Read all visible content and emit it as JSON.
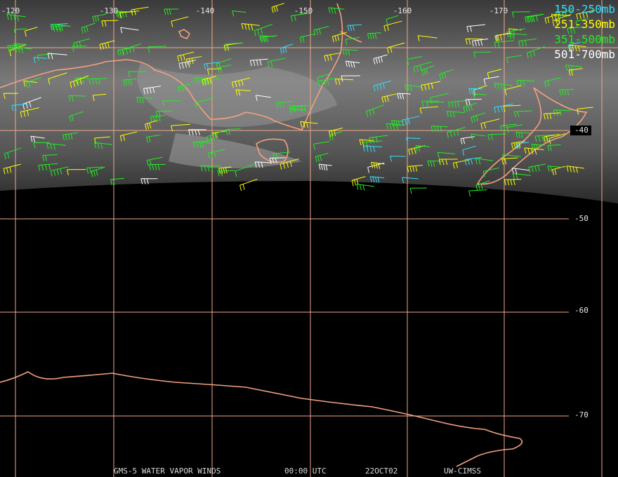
{
  "longitude_labels": [
    "-120",
    "-130",
    "-140",
    "-150",
    "-160",
    "-170"
  ],
  "latitude_labels": [
    "-40",
    "-50",
    "-60",
    "-70"
  ],
  "legend": [
    {
      "label": "150-250mb",
      "color": "#33ddff"
    },
    {
      "label": "251-350mb",
      "color": "#ffff00"
    },
    {
      "label": "351-500mb",
      "color": "#22ee22"
    },
    {
      "label": "501-700mb",
      "color": "#ffffff"
    }
  ],
  "footer": {
    "title": "GMS-5 WATER VAPOR WINDS",
    "time": "00:00 UTC",
    "date": "22OCT02",
    "source": "UW-CIMSS"
  }
}
